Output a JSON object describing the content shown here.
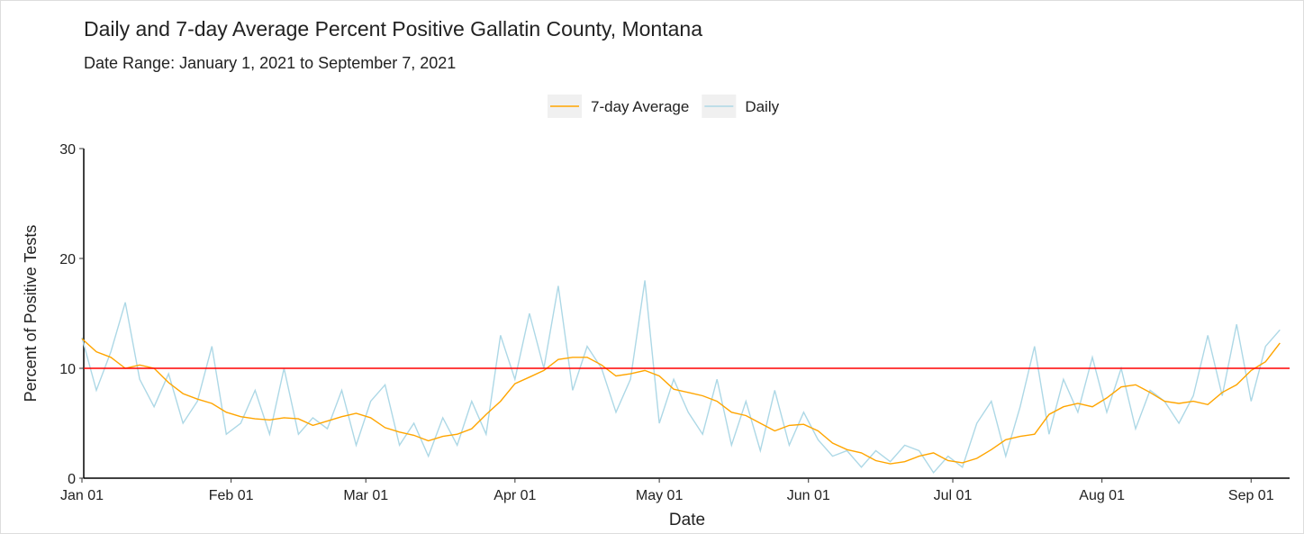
{
  "chart_data": {
    "type": "line",
    "title": "Daily and 7-day Average Percent Positive Gallatin County, Montana",
    "subtitle": "Date Range: January 1, 2021 to September 7, 2021",
    "x_label": "Date",
    "y_label": "Percent of Positive Tests",
    "legend": "top",
    "x": [
      "2021-01-01",
      "2021-01-04",
      "2021-01-07",
      "2021-01-10",
      "2021-01-13",
      "2021-01-16",
      "2021-01-19",
      "2021-01-22",
      "2021-01-25",
      "2021-01-28",
      "2021-01-31",
      "2021-02-03",
      "2021-02-06",
      "2021-02-09",
      "2021-02-12",
      "2021-02-15",
      "2021-02-18",
      "2021-02-21",
      "2021-02-24",
      "2021-02-27",
      "2021-03-02",
      "2021-03-05",
      "2021-03-08",
      "2021-03-11",
      "2021-03-14",
      "2021-03-17",
      "2021-03-20",
      "2021-03-23",
      "2021-03-26",
      "2021-03-29",
      "2021-04-01",
      "2021-04-04",
      "2021-04-07",
      "2021-04-10",
      "2021-04-13",
      "2021-04-16",
      "2021-04-19",
      "2021-04-22",
      "2021-04-25",
      "2021-04-28",
      "2021-05-01",
      "2021-05-04",
      "2021-05-07",
      "2021-05-10",
      "2021-05-13",
      "2021-05-16",
      "2021-05-19",
      "2021-05-22",
      "2021-05-25",
      "2021-05-28",
      "2021-05-31",
      "2021-06-03",
      "2021-06-06",
      "2021-06-09",
      "2021-06-12",
      "2021-06-15",
      "2021-06-18",
      "2021-06-21",
      "2021-06-24",
      "2021-06-27",
      "2021-06-30",
      "2021-07-03",
      "2021-07-06",
      "2021-07-09",
      "2021-07-12",
      "2021-07-15",
      "2021-07-18",
      "2021-07-21",
      "2021-07-24",
      "2021-07-27",
      "2021-07-30",
      "2021-08-02",
      "2021-08-05",
      "2021-08-08",
      "2021-08-11",
      "2021-08-14",
      "2021-08-17",
      "2021-08-20",
      "2021-08-23",
      "2021-08-26",
      "2021-08-29",
      "2021-09-01",
      "2021-09-04",
      "2021-09-07"
    ],
    "series": [
      {
        "name": "7-day Average",
        "color": "#ffa500",
        "values": [
          12.7,
          11.5,
          11,
          10,
          10.3,
          10,
          8.7,
          7.7,
          7.2,
          6.8,
          6,
          5.6,
          5.4,
          5.3,
          5.5,
          5.4,
          4.8,
          5.2,
          5.6,
          5.9,
          5.5,
          4.6,
          4.2,
          3.9,
          3.4,
          3.8,
          4.0,
          4.5,
          5.8,
          7.0,
          8.6,
          9.2,
          9.8,
          10.8,
          11.0,
          11.0,
          10.3,
          9.3,
          9.5,
          9.8,
          9.3,
          8.1,
          7.8,
          7.5,
          7.0,
          6.0,
          5.7,
          5.0,
          4.3,
          4.8,
          4.9,
          4.3,
          3.2,
          2.6,
          2.3,
          1.6,
          1.3,
          1.5,
          2.0,
          2.3,
          1.6,
          1.4,
          1.8,
          2.6,
          3.5,
          3.8,
          4.0,
          5.8,
          6.5,
          6.8,
          6.5,
          7.3,
          8.3,
          8.5,
          7.8,
          7.0,
          6.8,
          7.0,
          6.7,
          7.8,
          8.5,
          9.8,
          10.6,
          12.3
        ]
      },
      {
        "name": "Daily",
        "color": "#add8e6",
        "values": [
          12.8,
          8.0,
          11.5,
          16.0,
          9.0,
          6.5,
          9.5,
          5.0,
          7.0,
          12.0,
          4.0,
          5.0,
          8.0,
          4.0,
          10.0,
          4.0,
          5.5,
          4.5,
          8.0,
          3.0,
          7.0,
          8.5,
          3.0,
          5.0,
          2.0,
          5.5,
          3.0,
          7.0,
          4.0,
          13.0,
          9.0,
          15.0,
          10.0,
          17.5,
          8.0,
          12.0,
          10.0,
          6.0,
          9.0,
          18.0,
          5.0,
          9.0,
          6.0,
          4.0,
          9.0,
          3.0,
          7.0,
          2.5,
          8.0,
          3.0,
          6.0,
          3.5,
          2.0,
          2.5,
          1.0,
          2.5,
          1.5,
          3.0,
          2.5,
          0.5,
          2.0,
          1.0,
          5.0,
          7.0,
          2.0,
          6.5,
          12.0,
          4.0,
          9.0,
          6.0,
          11.0,
          6.0,
          10.0,
          4.5,
          8.0,
          7.0,
          5.0,
          7.5,
          13.0,
          7.5,
          14.0,
          7.0,
          12.0,
          13.5
        ]
      }
    ],
    "hlines": [
      {
        "value": 10,
        "color": "#ff0000"
      }
    ],
    "xlim": [
      "2021-01-01",
      "2021-09-09"
    ],
    "xticks": [
      {
        "value": "2021-01-01",
        "label": "Jan 01"
      },
      {
        "value": "2021-02-01",
        "label": "Feb 01"
      },
      {
        "value": "2021-03-01",
        "label": "Mar 01"
      },
      {
        "value": "2021-04-01",
        "label": "Apr 01"
      },
      {
        "value": "2021-05-01",
        "label": "May 01"
      },
      {
        "value": "2021-06-01",
        "label": "Jun 01"
      },
      {
        "value": "2021-07-01",
        "label": "Jul 01"
      },
      {
        "value": "2021-08-01",
        "label": "Aug 01"
      },
      {
        "value": "2021-09-01",
        "label": "Sep 01"
      }
    ],
    "ylim": [
      0,
      30
    ],
    "yticks": [
      0,
      10,
      20,
      30
    ],
    "grid": false
  }
}
